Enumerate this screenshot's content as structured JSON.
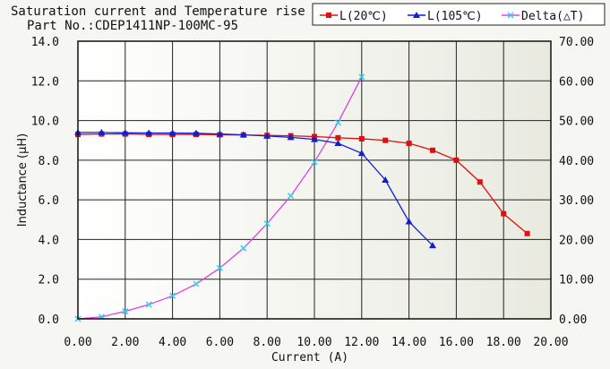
{
  "chart_data": {
    "type": "line",
    "title": "Saturation current and Temperature rise",
    "subtitle": "Part No.:CDEP1411NP-100MC-95",
    "xlabel": "Current (A)",
    "ylabel": "Inductance (μH)",
    "y2label": "",
    "xlim": [
      0,
      20
    ],
    "ylim": [
      0,
      14
    ],
    "y2lim": [
      0,
      70
    ],
    "x_ticks": [
      "0.00",
      "2.00",
      "4.00",
      "6.00",
      "8.00",
      "10.00",
      "12.00",
      "14.00",
      "16.00",
      "18.00",
      "20.00"
    ],
    "y_ticks": [
      "0.0",
      "2.0",
      "4.0",
      "6.0",
      "8.0",
      "10.0",
      "12.0",
      "14.0"
    ],
    "y2_ticks": [
      "0.00",
      "10.00",
      "20.00",
      "30.00",
      "40.00",
      "50.00",
      "60.00",
      "70.00"
    ],
    "grid": true,
    "legend_position": "top-right",
    "series": [
      {
        "name": "L(20℃)",
        "axis": "left",
        "color": "#e01010",
        "marker": "square",
        "x": [
          0,
          1,
          2,
          3,
          4,
          5,
          6,
          7,
          8,
          9,
          10,
          11,
          12,
          13,
          14,
          15,
          16,
          17,
          18,
          19
        ],
        "y": [
          9.3,
          9.32,
          9.32,
          9.3,
          9.3,
          9.3,
          9.28,
          9.27,
          9.25,
          9.23,
          9.19,
          9.13,
          9.08,
          9.0,
          8.85,
          8.5,
          8.0,
          6.9,
          5.3,
          4.3
        ]
      },
      {
        "name": "L(105℃)",
        "axis": "left",
        "color": "#1020d0",
        "marker": "triangle",
        "x": [
          0,
          1,
          2,
          3,
          4,
          5,
          6,
          7,
          8,
          9,
          10,
          11,
          12,
          13,
          14,
          15
        ],
        "y": [
          9.4,
          9.4,
          9.38,
          9.37,
          9.37,
          9.36,
          9.32,
          9.28,
          9.22,
          9.15,
          9.05,
          8.85,
          8.35,
          7.0,
          4.9,
          3.7
        ]
      },
      {
        "name": "Delta(△T)",
        "axis": "right",
        "color": "#e040e0",
        "marker_color": "#30d0f0",
        "marker": "x",
        "x": [
          0,
          1,
          2,
          3,
          4,
          5,
          6,
          7,
          8,
          9,
          10,
          11,
          12
        ],
        "y": [
          0,
          0.5,
          1.9,
          3.6,
          5.8,
          8.8,
          12.8,
          17.8,
          24.0,
          31.0,
          39.5,
          49.5,
          61.0
        ]
      }
    ]
  }
}
